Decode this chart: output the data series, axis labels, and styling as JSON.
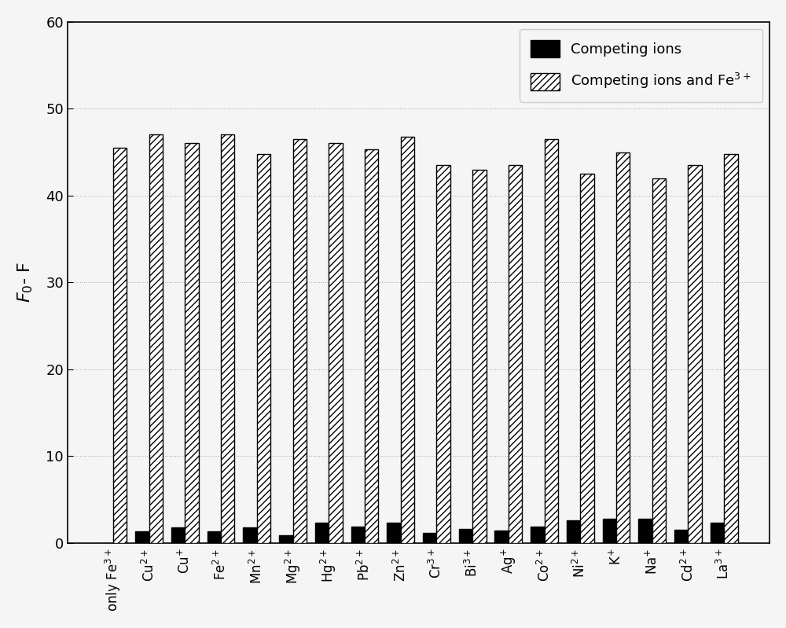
{
  "categories": [
    "only Fe$^{3+}$",
    "Cu$^{2+}$",
    "Cu$^{+}$",
    "Fe$^{2+}$",
    "Mn$^{2+}$",
    "Mg$^{2+}$",
    "Hg$^{2+}$",
    "Pb$^{2+}$",
    "Zn$^{2+}$",
    "Cr$^{3+}$",
    "Bi$^{3+}$",
    "Ag$^{+}$",
    "Co$^{2+}$",
    "Ni$^{2+}$",
    "K$^{+}$",
    "Na$^{+}$",
    "Cd$^{2+}$",
    "La$^{3+}$"
  ],
  "competing_ions": [
    0,
    1.3,
    1.8,
    1.3,
    1.8,
    0.9,
    2.3,
    1.9,
    2.3,
    1.1,
    1.6,
    1.4,
    1.9,
    2.6,
    2.8,
    2.8,
    1.5,
    2.3
  ],
  "competing_ions_fe3": [
    45.5,
    47.0,
    46.0,
    47.0,
    44.8,
    46.5,
    46.0,
    45.3,
    46.8,
    43.5,
    43.0,
    43.5,
    46.5,
    42.5,
    45.0,
    42.0,
    43.5,
    44.8
  ],
  "ylabel": "$F_0$- F",
  "ylim": [
    0,
    60
  ],
  "yticks": [
    0,
    10,
    20,
    30,
    40,
    50,
    60
  ],
  "legend_label1": "Competing ions",
  "legend_label2": "Competing ions and Fe$^{3+}$",
  "bar_width": 0.38,
  "fig_width": 10.0,
  "fig_height": 7.99,
  "solid_color": "#000000",
  "hatch_pattern": "////",
  "hatch_facecolor": "#ffffff",
  "hatch_edgecolor": "#000000",
  "bg_color": "#f5f5f5"
}
